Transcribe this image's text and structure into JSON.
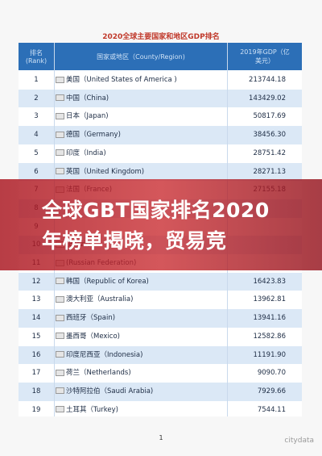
{
  "title": "2020全球主要国家和地区GDP排名",
  "header": {
    "rank": [
      "排名",
      "(Rank)"
    ],
    "country": "国家或地区（County/Region)",
    "gdp": [
      "2019年GDP（亿",
      "美元）"
    ]
  },
  "rows": [
    {
      "rank": "1",
      "country": "美国（United States of America )",
      "gdp": "213744.18"
    },
    {
      "rank": "2",
      "country": "中国（China)",
      "gdp": "143429.02"
    },
    {
      "rank": "3",
      "country": "日本（Japan)",
      "gdp": "50817.69"
    },
    {
      "rank": "4",
      "country": "德国（Germany)",
      "gdp": "38456.30"
    },
    {
      "rank": "5",
      "country": "印度（India)",
      "gdp": "28751.42"
    },
    {
      "rank": "6",
      "country": "英国（United Kingdom)",
      "gdp": "28271.13"
    },
    {
      "rank": "7",
      "country": "法国（France)",
      "gdp": "27155.18"
    },
    {
      "rank": "8"
    },
    {
      "rank": "9"
    },
    {
      "rank": "10",
      "country": "(Brazil)"
    },
    {
      "rank": "11",
      "country": "(Russian Federation)"
    },
    {
      "rank": "12",
      "country": "韩国（Republic of Korea)",
      "gdp": "16423.83"
    },
    {
      "rank": "13",
      "country": "澳大利亚（Australia)",
      "gdp": "13962.81"
    },
    {
      "rank": "14",
      "country": "西班牙（Spain)",
      "gdp": "13941.16"
    },
    {
      "rank": "15",
      "country": "墨西哥（Mexico)",
      "gdp": "12582.86"
    },
    {
      "rank": "16",
      "country": "印度尼西亚（Indonesia)",
      "gdp": "11191.90"
    },
    {
      "rank": "17",
      "country": "荷兰（Netherlands)",
      "gdp": "9090.70"
    },
    {
      "rank": "18",
      "country": "沙特阿拉伯（Saudi Arabia)",
      "gdp": "7929.66"
    },
    {
      "rank": "19",
      "country": "土耳其（Turkey)",
      "gdp": "7544.11"
    }
  ],
  "banner": {
    "headline": "全球GBT国家排名2020年榜单揭晓，贸易竞"
  },
  "page_number": "1",
  "watermark": "citydata"
}
